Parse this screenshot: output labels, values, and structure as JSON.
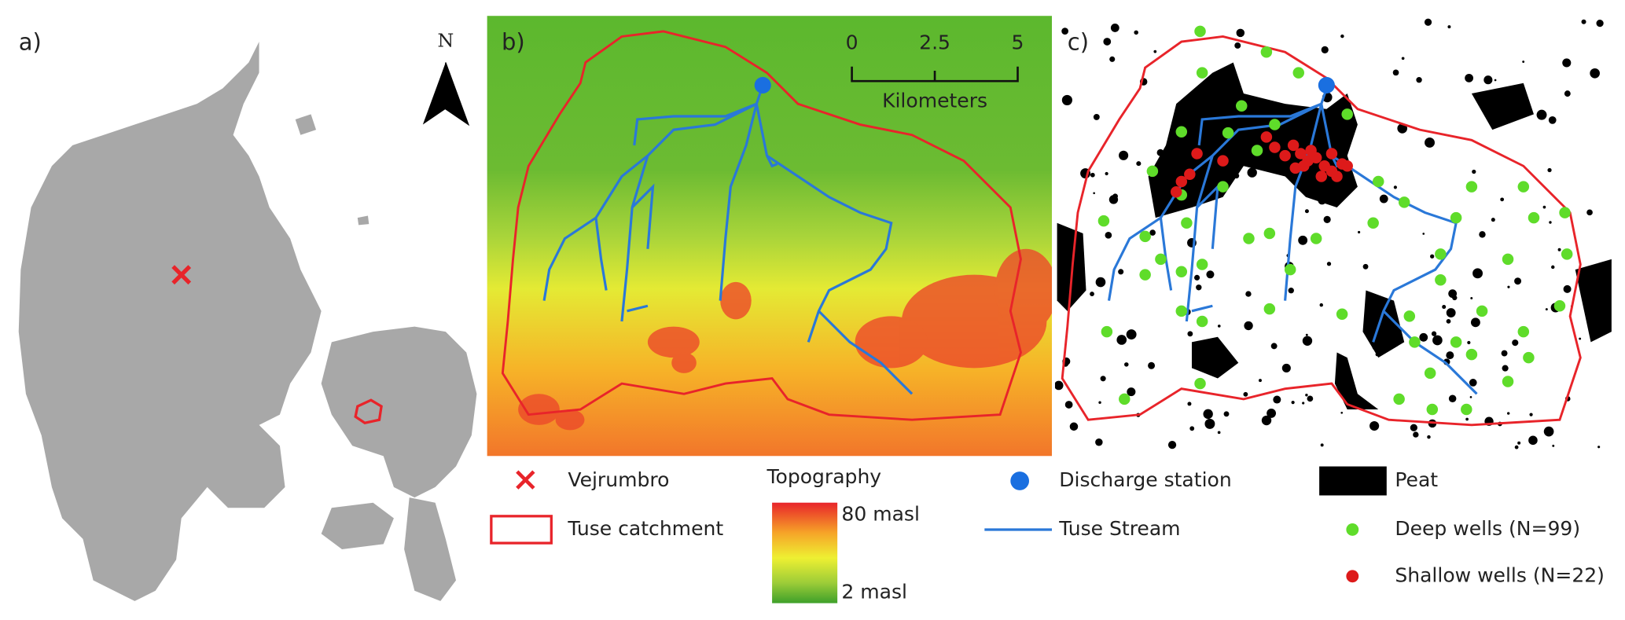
{
  "panels": {
    "a": {
      "label": "a)",
      "north": "N"
    },
    "b": {
      "label": "b)",
      "scale_bar": {
        "ticks": [
          "0",
          "2.5",
          "5"
        ],
        "unit": "Kilometers"
      }
    },
    "c": {
      "label": "c)"
    }
  },
  "legend": {
    "vejrumbro": "Vejrumbro",
    "catchment": "Tuse catchment",
    "topography": {
      "title": "Topography",
      "max": "80 masl",
      "min": "2 masl"
    },
    "discharge": "Discharge station",
    "stream": "Tuse Stream",
    "peat": "Peat",
    "deep_wells": "Deep wells (N=99)",
    "shallow_wells": "Shallow wells (N=22)"
  }
}
